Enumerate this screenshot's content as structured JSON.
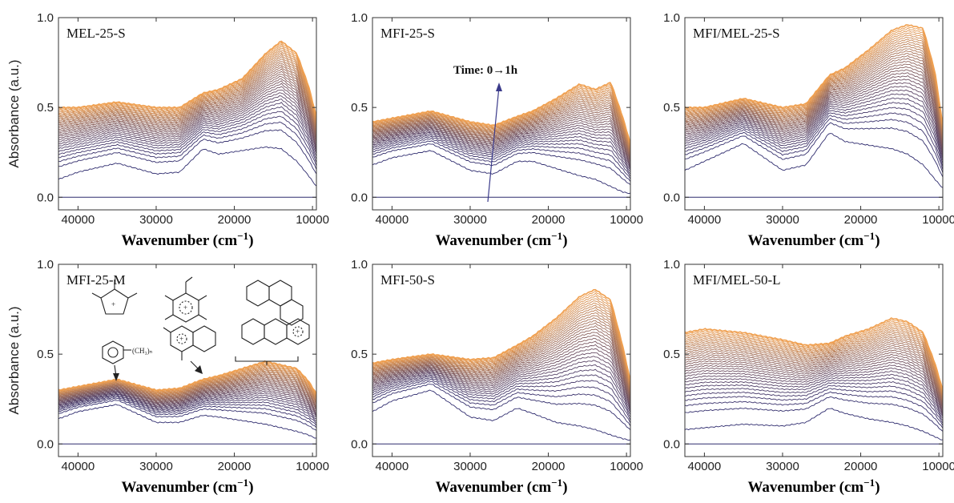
{
  "figure": {
    "ylabel": "Absorbance (a.u.)",
    "xlabel_main": "Wavenumber (cm",
    "xlabel_sup": "−1",
    "xlabel_end": ")",
    "annotation": "Time: 0→1h",
    "chem_label": "(CH₃)ₙ",
    "chem_plus": "+"
  },
  "chart_data": [
    {
      "type": "line",
      "title": "MEL-25-S",
      "xlabel": "Wavenumber (cm⁻¹)",
      "ylabel": "Absorbance (a.u.)",
      "xlim": [
        42500,
        9500
      ],
      "ylim": [
        -0.07,
        1.0
      ],
      "xticks": [
        40000,
        30000,
        20000,
        10000
      ],
      "yticks": [
        0.0,
        0.5,
        1.0
      ],
      "series_count": 34,
      "time_range": "0→1h",
      "color_start": "#2e2b6e",
      "color_end": "#f0a050",
      "baseline_curve": {
        "x": [
          42500,
          40000,
          35000,
          30000,
          27000,
          24000,
          22000,
          19000,
          16000,
          14000,
          12000,
          10500,
          9500
        ],
        "y": [
          0.0,
          0.0,
          0.0,
          0.0,
          0.0,
          0.0,
          0.0,
          0.0,
          0.0,
          0.0,
          0.0,
          0.0,
          0.0
        ]
      },
      "first_curve": {
        "x": [
          42500,
          40000,
          35000,
          30000,
          27000,
          24000,
          22000,
          19000,
          16000,
          14000,
          12000,
          10500,
          9500
        ],
        "y": [
          0.1,
          0.14,
          0.19,
          0.13,
          0.14,
          0.27,
          0.24,
          0.26,
          0.28,
          0.27,
          0.2,
          0.12,
          0.06
        ]
      },
      "final_curve": {
        "x": [
          42500,
          40000,
          35000,
          30000,
          27000,
          24000,
          22000,
          19000,
          16000,
          14000,
          12000,
          10500,
          9500
        ],
        "y": [
          0.5,
          0.5,
          0.53,
          0.5,
          0.5,
          0.58,
          0.6,
          0.66,
          0.8,
          0.87,
          0.8,
          0.62,
          0.45
        ]
      }
    },
    {
      "type": "line",
      "title": "MFI-25-S",
      "xlabel": "Wavenumber (cm⁻¹)",
      "ylabel": "",
      "xlim": [
        42500,
        9500
      ],
      "ylim": [
        -0.07,
        1.0
      ],
      "xticks": [
        40000,
        30000,
        20000,
        10000
      ],
      "yticks": [
        0.0,
        0.5,
        1.0
      ],
      "series_count": 34,
      "time_range": "0→1h",
      "color_start": "#2e2b6e",
      "color_end": "#f0a050",
      "baseline_curve": {
        "x": [
          42500,
          40000,
          35000,
          30000,
          27000,
          24000,
          22000,
          19000,
          16000,
          14000,
          12000,
          10500,
          9500
        ],
        "y": [
          0.0,
          0.0,
          0.0,
          0.0,
          0.0,
          0.0,
          0.0,
          0.0,
          0.0,
          0.0,
          0.0,
          0.0,
          0.0
        ]
      },
      "first_curve": {
        "x": [
          42500,
          40000,
          35000,
          30000,
          27000,
          24000,
          22000,
          19000,
          16000,
          14000,
          12000,
          10500,
          9500
        ],
        "y": [
          0.18,
          0.22,
          0.26,
          0.15,
          0.13,
          0.2,
          0.2,
          0.16,
          0.12,
          0.1,
          0.06,
          0.03,
          0.02
        ]
      },
      "final_curve": {
        "x": [
          42500,
          40000,
          35000,
          30000,
          27000,
          24000,
          22000,
          19000,
          16000,
          14000,
          12000,
          10500,
          9500
        ],
        "y": [
          0.42,
          0.44,
          0.48,
          0.42,
          0.4,
          0.45,
          0.48,
          0.55,
          0.63,
          0.6,
          0.64,
          0.45,
          0.3
        ]
      }
    },
    {
      "type": "line",
      "title": "MFI/MEL-25-S",
      "xlabel": "Wavenumber (cm⁻¹)",
      "ylabel": "",
      "xlim": [
        42500,
        9500
      ],
      "ylim": [
        -0.07,
        1.0
      ],
      "xticks": [
        40000,
        30000,
        20000,
        10000
      ],
      "yticks": [
        0.0,
        0.5,
        1.0
      ],
      "series_count": 34,
      "time_range": "0→1h",
      "color_start": "#2e2b6e",
      "color_end": "#f0a050",
      "baseline_curve": {
        "x": [
          42500,
          40000,
          35000,
          30000,
          27000,
          24000,
          22000,
          19000,
          16000,
          14000,
          12000,
          10500,
          9500
        ],
        "y": [
          0.0,
          0.0,
          0.0,
          0.0,
          0.0,
          0.0,
          0.0,
          0.0,
          0.0,
          0.0,
          0.0,
          0.0,
          0.0
        ]
      },
      "first_curve": {
        "x": [
          42500,
          40000,
          35000,
          30000,
          27000,
          24000,
          22000,
          19000,
          16000,
          14000,
          12000,
          10500,
          9500
        ],
        "y": [
          0.15,
          0.2,
          0.3,
          0.15,
          0.18,
          0.36,
          0.31,
          0.29,
          0.27,
          0.24,
          0.18,
          0.1,
          0.05
        ]
      },
      "final_curve": {
        "x": [
          42500,
          40000,
          35000,
          30000,
          27000,
          24000,
          22000,
          19000,
          16000,
          14000,
          12000,
          10500,
          9500
        ],
        "y": [
          0.5,
          0.5,
          0.55,
          0.5,
          0.52,
          0.68,
          0.72,
          0.82,
          0.93,
          0.96,
          0.94,
          0.7,
          0.4
        ]
      }
    },
    {
      "type": "line",
      "title": "MFI-25-M",
      "xlabel": "Wavenumber (cm⁻¹)",
      "ylabel": "Absorbance (a.u.)",
      "xlim": [
        42500,
        9500
      ],
      "ylim": [
        -0.07,
        1.0
      ],
      "xticks": [
        40000,
        30000,
        20000,
        10000
      ],
      "yticks": [
        0.0,
        0.5,
        1.0
      ],
      "series_count": 34,
      "time_range": "0→1h",
      "color_start": "#2e2b6e",
      "color_end": "#f0a050",
      "baseline_curve": {
        "x": [
          42500,
          40000,
          35000,
          30000,
          27000,
          24000,
          22000,
          19000,
          16000,
          14000,
          12000,
          10500,
          9500
        ],
        "y": [
          0.0,
          0.0,
          0.0,
          0.0,
          0.0,
          0.0,
          0.0,
          0.0,
          0.0,
          0.0,
          0.0,
          0.0,
          0.0
        ]
      },
      "first_curve": {
        "x": [
          42500,
          40000,
          35000,
          30000,
          27000,
          24000,
          22000,
          19000,
          16000,
          14000,
          12000,
          10500,
          9500
        ],
        "y": [
          0.14,
          0.18,
          0.22,
          0.12,
          0.12,
          0.16,
          0.15,
          0.13,
          0.11,
          0.09,
          0.07,
          0.05,
          0.03
        ]
      },
      "final_curve": {
        "x": [
          42500,
          40000,
          35000,
          30000,
          27000,
          24000,
          22000,
          19000,
          16000,
          14000,
          12000,
          10500,
          9500
        ],
        "y": [
          0.3,
          0.32,
          0.36,
          0.3,
          0.31,
          0.36,
          0.38,
          0.42,
          0.46,
          0.44,
          0.42,
          0.35,
          0.28
        ]
      }
    },
    {
      "type": "line",
      "title": "MFI-50-S",
      "xlabel": "Wavenumber (cm⁻¹)",
      "ylabel": "",
      "xlim": [
        42500,
        9500
      ],
      "ylim": [
        -0.07,
        1.0
      ],
      "xticks": [
        40000,
        30000,
        20000,
        10000
      ],
      "yticks": [
        0.0,
        0.5,
        1.0
      ],
      "series_count": 34,
      "time_range": "0→1h",
      "color_start": "#2e2b6e",
      "color_end": "#f0a050",
      "baseline_curve": {
        "x": [
          42500,
          40000,
          35000,
          30000,
          27000,
          24000,
          22000,
          19000,
          16000,
          14000,
          12000,
          10500,
          9500
        ],
        "y": [
          0.0,
          0.0,
          0.0,
          0.0,
          0.0,
          0.0,
          0.0,
          0.0,
          0.0,
          0.0,
          0.0,
          0.0,
          0.0
        ]
      },
      "first_curve": {
        "x": [
          42500,
          40000,
          35000,
          30000,
          27000,
          24000,
          22000,
          19000,
          16000,
          14000,
          12000,
          10500,
          9500
        ],
        "y": [
          0.18,
          0.24,
          0.3,
          0.15,
          0.13,
          0.2,
          0.17,
          0.12,
          0.1,
          0.08,
          0.05,
          0.03,
          0.02
        ]
      },
      "final_curve": {
        "x": [
          42500,
          40000,
          35000,
          30000,
          27000,
          24000,
          22000,
          19000,
          16000,
          14000,
          12000,
          10500,
          9500
        ],
        "y": [
          0.45,
          0.47,
          0.5,
          0.47,
          0.48,
          0.55,
          0.6,
          0.7,
          0.82,
          0.86,
          0.8,
          0.55,
          0.35
        ]
      }
    },
    {
      "type": "line",
      "title": "MFI/MEL-50-L",
      "xlabel": "Wavenumber (cm⁻¹)",
      "ylabel": "",
      "xlim": [
        42500,
        9500
      ],
      "ylim": [
        -0.07,
        1.0
      ],
      "xticks": [
        40000,
        30000,
        20000,
        10000
      ],
      "yticks": [
        0.0,
        0.5,
        1.0
      ],
      "series_count": 34,
      "time_range": "0→1h",
      "color_start": "#2e2b6e",
      "color_end": "#f0a050",
      "baseline_curve": {
        "x": [
          42500,
          40000,
          35000,
          30000,
          27000,
          24000,
          22000,
          19000,
          16000,
          14000,
          12000,
          10500,
          9500
        ],
        "y": [
          0.0,
          0.0,
          0.0,
          0.0,
          0.0,
          0.0,
          0.0,
          0.0,
          0.0,
          0.0,
          0.0,
          0.0,
          0.0
        ]
      },
      "first_curve": {
        "x": [
          42500,
          40000,
          35000,
          30000,
          27000,
          24000,
          22000,
          19000,
          16000,
          14000,
          12000,
          10500,
          9500
        ],
        "y": [
          0.08,
          0.09,
          0.11,
          0.1,
          0.12,
          0.2,
          0.17,
          0.14,
          0.12,
          0.1,
          0.07,
          0.04,
          0.02
        ]
      },
      "final_curve": {
        "x": [
          42500,
          40000,
          35000,
          30000,
          27000,
          24000,
          22000,
          19000,
          16000,
          14000,
          12000,
          10500,
          9500
        ],
        "y": [
          0.62,
          0.64,
          0.62,
          0.58,
          0.55,
          0.56,
          0.6,
          0.64,
          0.7,
          0.68,
          0.62,
          0.45,
          0.3
        ]
      }
    }
  ]
}
